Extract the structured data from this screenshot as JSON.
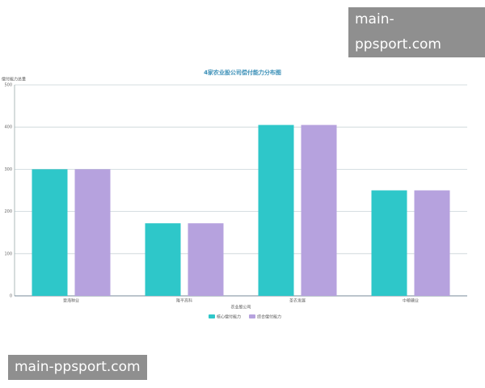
{
  "chart_data": {
    "type": "bar",
    "title": "4家农业股公司偿付能力分布图",
    "y_label": "偿付能力总量",
    "x_label": "农业股公司",
    "categories": [
      "登海种业",
      "隆平高科",
      "圣农发展",
      "中粮糖业"
    ],
    "series": [
      {
        "name": "核心偿付能力",
        "color": "#2ec7c9",
        "values": [
          300,
          172,
          405,
          250
        ]
      },
      {
        "name": "综合偿付能力",
        "color": "#b6a2de",
        "values": [
          300,
          172,
          405,
          250
        ]
      }
    ],
    "ylim": [
      0,
      500
    ],
    "yticks": [
      0,
      100,
      200,
      300,
      400,
      500
    ],
    "grid": true,
    "legend": "bottom"
  },
  "watermarks": [
    "main-ppsport.com",
    "main-ppsport.com"
  ]
}
